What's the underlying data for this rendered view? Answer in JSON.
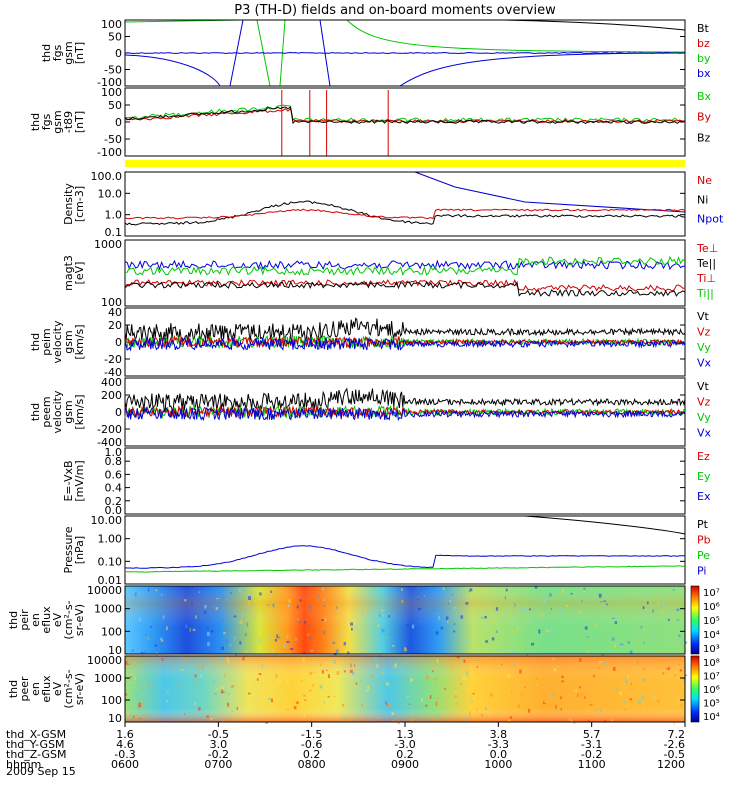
{
  "title": "P3 (TH-D) fields and on-board moments overview",
  "date": "2009 Sep 15",
  "colors": {
    "black": "#000000",
    "red": "#d40000",
    "green": "#00c800",
    "blue": "#0000d8",
    "yellow": "#ffff00"
  },
  "chart_data": [
    {
      "type": "line",
      "ylabel": [
        "thd",
        "fgs",
        "gsm",
        "[nT]"
      ],
      "yticks": [
        "100",
        "50",
        "0",
        "-50",
        "-100"
      ],
      "legend": [
        {
          "name": "Bt",
          "color": "#000000"
        },
        {
          "name": "bz",
          "color": "#d40000"
        },
        {
          "name": "by",
          "color": "#00c800"
        },
        {
          "name": "bx",
          "color": "#0000d8"
        }
      ]
    },
    {
      "type": "line",
      "ylabel": [
        "thd",
        "fgs",
        "gsm",
        "-t89",
        "[nT]"
      ],
      "yticks": [
        "100",
        "50",
        "0",
        "-50",
        "-100"
      ],
      "legend": [
        {
          "name": "Bx",
          "color": "#00c800"
        },
        {
          "name": "By",
          "color": "#d40000"
        },
        {
          "name": "Bz",
          "color": "#000000"
        }
      ]
    },
    {
      "type": "line",
      "ylabel": [
        "Density",
        "[cm-3]"
      ],
      "yticks": [
        "100.0",
        "10.0",
        "1.0",
        "0.1"
      ],
      "scale": "log",
      "legend": [
        {
          "name": "Ne",
          "color": "#d40000"
        },
        {
          "name": "Ni",
          "color": "#000000"
        },
        {
          "name": "Npot",
          "color": "#0000d8"
        }
      ]
    },
    {
      "type": "line",
      "ylabel": [
        "magt3",
        "[eV]"
      ],
      "yticks": [
        "1000",
        "100"
      ],
      "scale": "log",
      "legend": [
        {
          "name": "Te⊥",
          "color": "#d40000"
        },
        {
          "name": "Te||",
          "color": "#000000"
        },
        {
          "name": "Ti⊥",
          "color": "#d40000"
        },
        {
          "name": "Ti||",
          "color": "#00c800"
        }
      ]
    },
    {
      "type": "line",
      "ylabel": [
        "thd",
        "peim",
        "velocity",
        "gsm",
        "[km/s]"
      ],
      "yticks": [
        "40",
        "20",
        "0",
        "-20",
        "-40"
      ],
      "legend": [
        {
          "name": "Vt",
          "color": "#000000"
        },
        {
          "name": "Vz",
          "color": "#d40000"
        },
        {
          "name": "Vy",
          "color": "#00c800"
        },
        {
          "name": "Vx",
          "color": "#0000d8"
        }
      ]
    },
    {
      "type": "line",
      "ylabel": [
        "thd",
        "peem",
        "velocity",
        "gsm",
        "[km/s]"
      ],
      "yticks": [
        "400",
        "200",
        "0",
        "-200",
        "-400"
      ],
      "legend": [
        {
          "name": "Vt",
          "color": "#000000"
        },
        {
          "name": "Vz",
          "color": "#d40000"
        },
        {
          "name": "Vy",
          "color": "#00c800"
        },
        {
          "name": "Vx",
          "color": "#0000d8"
        }
      ]
    },
    {
      "type": "line",
      "ylabel": [
        "E=-VxB",
        "[mV/m]"
      ],
      "yticks": [
        "1.0",
        "0.8",
        "0.6",
        "0.4",
        "0.2",
        "0.0"
      ],
      "legend": [
        {
          "name": "Ez",
          "color": "#d40000"
        },
        {
          "name": "Ey",
          "color": "#00c800"
        },
        {
          "name": "Ex",
          "color": "#0000d8"
        }
      ]
    },
    {
      "type": "line",
      "ylabel": [
        "Pressure",
        "[nPa]"
      ],
      "yticks": [
        "10.00",
        "1.00",
        "0.10",
        "0.01"
      ],
      "scale": "log",
      "legend": [
        {
          "name": "Pt",
          "color": "#000000"
        },
        {
          "name": "Pb",
          "color": "#d40000"
        },
        {
          "name": "Pe",
          "color": "#00c800"
        },
        {
          "name": "Pi",
          "color": "#0000d8"
        }
      ]
    },
    {
      "type": "heatmap",
      "ylabel": [
        "thd",
        "peir",
        "en",
        "eflux",
        "eV",
        "(cm²-s-",
        "sr-eV)"
      ],
      "yticks": [
        "10000",
        "1000",
        "100",
        "10"
      ],
      "colorbar": [
        "10⁷",
        "10⁶",
        "10⁵",
        "10⁴",
        "10³"
      ]
    },
    {
      "type": "heatmap",
      "ylabel": [
        "thd",
        "peer",
        "en",
        "eflux",
        "eV",
        "(cm²-s-",
        "sr-eV)"
      ],
      "yticks": [
        "10000",
        "1000",
        "100",
        "10"
      ],
      "colorbar": [
        "10⁸",
        "10⁷",
        "10⁶",
        "10⁵",
        "10⁴"
      ]
    }
  ],
  "xaxis": {
    "rows": [
      {
        "label": "thd_X-GSM",
        "values": [
          "1.6",
          "-0.5",
          "-1.5",
          "1.3",
          "3.8",
          "5.7",
          "7.2"
        ]
      },
      {
        "label": "thd_Y-GSM",
        "values": [
          "4.6",
          "3.0",
          "-0.6",
          "-3.0",
          "-3.3",
          "-3.1",
          "-2.6"
        ]
      },
      {
        "label": "thd_Z-GSM",
        "values": [
          "-0.3",
          "-0.2",
          "0.2",
          "0.2",
          "0.0",
          "-0.2",
          "-0.5"
        ]
      },
      {
        "label": "hhmm",
        "values": [
          "0600",
          "0700",
          "0800",
          "0900",
          "1000",
          "1100",
          "1200"
        ]
      }
    ]
  }
}
